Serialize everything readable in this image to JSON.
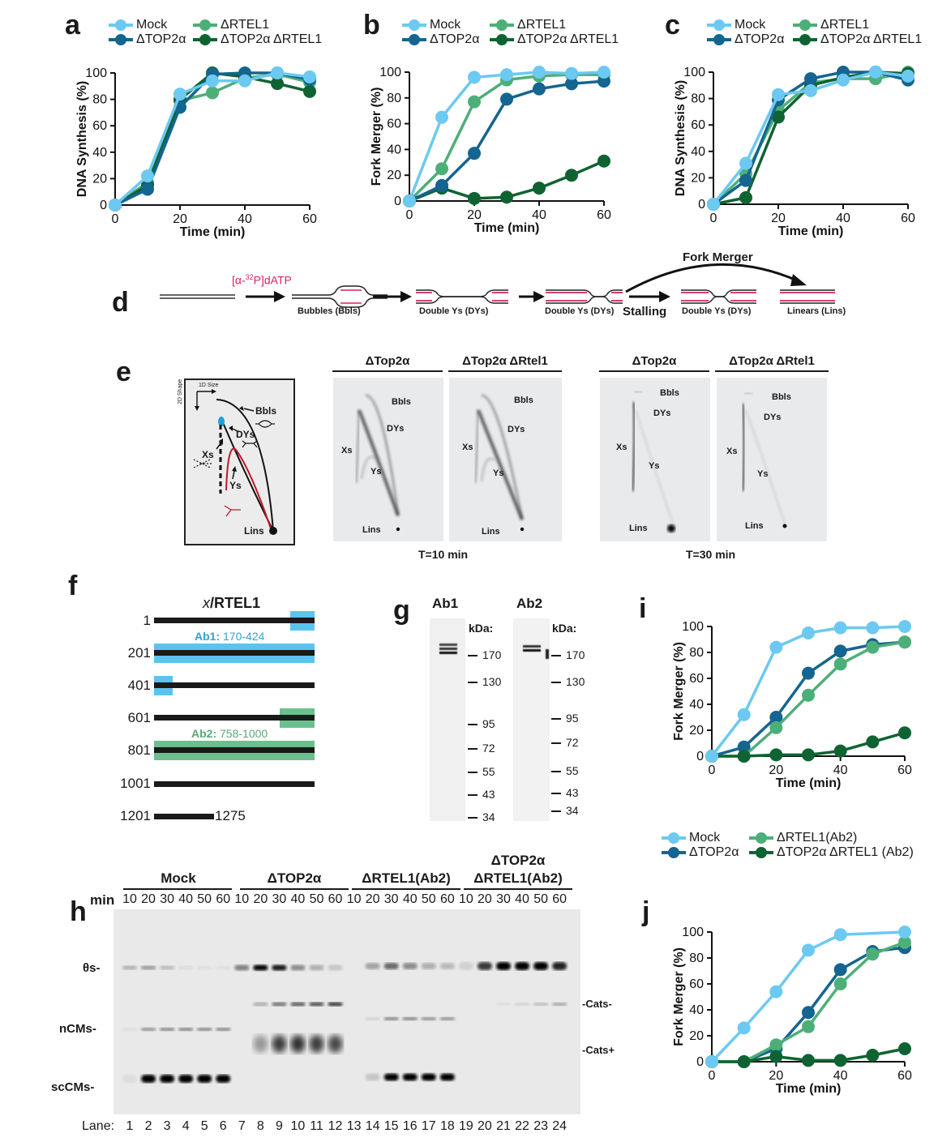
{
  "colors": {
    "mock": "#6cc9f1",
    "top2a": "#14658f",
    "rtel1": "#4daf78",
    "double": "#0f6332",
    "magenta": "#d6245e",
    "blue_band": "#5bc4ee",
    "green_band": "#6cbf8e"
  },
  "panel_letters": {
    "a": "a",
    "b": "b",
    "c": "c",
    "d": "d",
    "e": "e",
    "f": "f",
    "g": "g",
    "h": "h",
    "i": "i",
    "j": "j"
  },
  "chart_data": [
    {
      "id": "a",
      "type": "line",
      "title": "",
      "xlabel": "Time (min)",
      "ylabel": "DNA Synthesis (%)",
      "x": [
        0,
        10,
        20,
        30,
        40,
        50,
        60
      ],
      "xticks": [
        "0",
        "20",
        "40",
        "60"
      ],
      "yticks": [
        "0",
        "20",
        "40",
        "60",
        "80",
        "100"
      ],
      "xlim": [
        0,
        60
      ],
      "ylim": [
        0,
        100
      ],
      "grid": false,
      "legend_position": "top",
      "legend": [
        "Mock",
        "ΔTOP2α",
        "ΔRTEL1",
        "ΔTOP2α ΔRTEL1"
      ],
      "series": [
        {
          "name": "Mock",
          "values": [
            0,
            22,
            84,
            94,
            94,
            100,
            97
          ]
        },
        {
          "name": "ΔTOP2α",
          "values": [
            0,
            12,
            74,
            99,
            100,
            100,
            95
          ]
        },
        {
          "name": "ΔRTEL1",
          "values": [
            0,
            17,
            79,
            85,
            96,
            99,
            93
          ]
        },
        {
          "name": "ΔTOP2α ΔRTEL1",
          "values": [
            0,
            15,
            80,
            100,
            97,
            92,
            86
          ]
        }
      ]
    },
    {
      "id": "b",
      "type": "line",
      "title": "",
      "xlabel": "Time (min)",
      "ylabel": "Fork Merger (%)",
      "x": [
        0,
        10,
        20,
        30,
        40,
        50,
        60
      ],
      "xticks": [
        "0",
        "20",
        "40",
        "60"
      ],
      "yticks": [
        "0",
        "20",
        "40",
        "60",
        "80",
        "100"
      ],
      "xlim": [
        0,
        60
      ],
      "ylim": [
        0,
        100
      ],
      "grid": false,
      "legend_position": "top",
      "legend": [
        "Mock",
        "ΔTOP2α",
        "ΔRTEL1",
        "ΔTOP2α ΔRTEL1"
      ],
      "series": [
        {
          "name": "Mock",
          "values": [
            0,
            65,
            96,
            98,
            100,
            99,
            100
          ]
        },
        {
          "name": "ΔTOP2α",
          "values": [
            0,
            12,
            37,
            79,
            87,
            91,
            93
          ]
        },
        {
          "name": "ΔRTEL1",
          "values": [
            0,
            25,
            77,
            94,
            97,
            98,
            98
          ]
        },
        {
          "name": "ΔTOP2α ΔRTEL1",
          "values": [
            0,
            10,
            2,
            3,
            10,
            20,
            31
          ]
        }
      ]
    },
    {
      "id": "c",
      "type": "line",
      "title": "",
      "xlabel": "Time (min)",
      "ylabel": "DNA Synthesis (%)",
      "x": [
        0,
        10,
        20,
        30,
        40,
        50,
        60
      ],
      "xticks": [
        "0",
        "20",
        "40",
        "60"
      ],
      "yticks": [
        "0",
        "20",
        "40",
        "60",
        "80",
        "100"
      ],
      "xlim": [
        0,
        60
      ],
      "ylim": [
        0,
        100
      ],
      "grid": false,
      "legend_position": "top",
      "legend": [
        "Mock",
        "ΔTOP2α",
        "ΔRTEL1",
        "ΔTOP2α ΔRTEL1"
      ],
      "series": [
        {
          "name": "Mock",
          "values": [
            0,
            31,
            83,
            86,
            94,
            100,
            97
          ]
        },
        {
          "name": "ΔTOP2α",
          "values": [
            0,
            18,
            79,
            95,
            100,
            100,
            94
          ]
        },
        {
          "name": "ΔRTEL1",
          "values": [
            0,
            23,
            71,
            92,
            95,
            95,
            100
          ]
        },
        {
          "name": "ΔTOP2α ΔRTEL1",
          "values": [
            0,
            5,
            66,
            90,
            96,
            100,
            99
          ]
        }
      ]
    },
    {
      "id": "i",
      "type": "line",
      "title": "",
      "xlabel": "Time (min)",
      "ylabel": "Fork Merger (%)",
      "x": [
        0,
        10,
        20,
        30,
        40,
        50,
        60
      ],
      "xticks": [
        "0",
        "20",
        "40",
        "60"
      ],
      "yticks": [
        "0",
        "20",
        "40",
        "60",
        "80",
        "100"
      ],
      "xlim": [
        0,
        60
      ],
      "ylim": [
        0,
        100
      ],
      "grid": false,
      "legend_position": "bottom",
      "legend": [
        "Mock",
        "ΔTOP2α",
        "ΔRTEL1(Ab2)",
        "ΔTOP2α ΔRTEL1 (Ab2)"
      ],
      "series": [
        {
          "name": "Mock",
          "values": [
            0,
            32,
            84,
            95,
            99,
            99,
            100
          ]
        },
        {
          "name": "ΔTOP2α",
          "values": [
            0,
            7,
            30,
            64,
            81,
            86,
            88
          ]
        },
        {
          "name": "ΔRTEL1(Ab2)",
          "values": [
            0,
            0,
            22,
            47,
            71,
            84,
            88
          ]
        },
        {
          "name": "ΔTOP2α ΔRTEL1 (Ab2)",
          "values": [
            0,
            0,
            1,
            1,
            4,
            11,
            18
          ]
        }
      ]
    },
    {
      "id": "j",
      "type": "line",
      "title": "",
      "xlabel": "Time (min)",
      "ylabel": "Fork Merger (%)",
      "x": [
        0,
        10,
        20,
        30,
        40,
        50,
        60
      ],
      "xticks": [
        "0",
        "20",
        "40",
        "60"
      ],
      "yticks": [
        "0",
        "20",
        "40",
        "60",
        "80",
        "100"
      ],
      "xlim": [
        0,
        60
      ],
      "ylim": [
        0,
        100
      ],
      "grid": false,
      "legend_position": "shared-with-i",
      "legend": [
        "Mock",
        "ΔTOP2α",
        "ΔRTEL1(Ab2)",
        "ΔTOP2α ΔRTEL1 (Ab2)"
      ],
      "series": [
        {
          "name": "Mock",
          "values": [
            0,
            26,
            54,
            86,
            98,
            null,
            100
          ]
        },
        {
          "name": "ΔTOP2α",
          "values": [
            0,
            0,
            10,
            38,
            71,
            85,
            88
          ]
        },
        {
          "name": "ΔRTEL1(Ab2)",
          "values": [
            0,
            0,
            13,
            27,
            60,
            83,
            92
          ]
        },
        {
          "name": "ΔTOP2α ΔRTEL1 (Ab2)",
          "values": [
            0,
            0,
            4,
            1,
            1,
            5,
            10
          ]
        }
      ]
    }
  ],
  "panel_d": {
    "label_isotope": "[α-32P]dATP",
    "isotope_prefix": "[α-",
    "isotope_sup": "32",
    "isotope_suffix": "P]dATP",
    "steps": [
      "Bubbles (Bbls)",
      "Double Ys (DYs)",
      "Double Ys (DYs)",
      "Double Ys (DYs)",
      "Linears (Lins)"
    ],
    "stalling": "Stalling",
    "fork_merger": "Fork Merger"
  },
  "panel_e": {
    "schematic": {
      "axis_x": "1D Size",
      "axis_y": "2D Shape",
      "labels": {
        "bbls": "Bbls",
        "dys": "DYs",
        "xs": "Xs",
        "ys": "Ys",
        "lins": "Lins"
      }
    },
    "gels": [
      {
        "title": "ΔTop2α",
        "labels": [
          "Bbls",
          "DYs",
          "Xs",
          "Ys",
          "Lins"
        ]
      },
      {
        "title": "ΔTop2α ΔRtel1",
        "labels": [
          "Bbls",
          "DYs",
          "Xs",
          "Ys",
          "Lins"
        ]
      },
      {
        "title": "ΔTop2α",
        "labels": [
          "Bbls",
          "DYs",
          "Xs",
          "Ys",
          "Lins"
        ]
      },
      {
        "title": "ΔTop2α ΔRtel1",
        "labels": [
          "Bbls",
          "DYs",
          "Xs",
          "Ys",
          "Lins"
        ]
      }
    ],
    "timepoints": [
      "T=10 min",
      "T=30 min"
    ]
  },
  "panel_f": {
    "title_italic": "x",
    "title_rest": "/RTEL1",
    "rows": [
      "1",
      "201",
      "401",
      "601",
      "801",
      "1001",
      "1201"
    ],
    "end_label": "1275",
    "ab1_label": "Ab1:",
    "ab1_range": "170-424",
    "ab2_label": "Ab2:",
    "ab2_range": "758-1000"
  },
  "panel_g": {
    "blots": [
      {
        "title": "Ab1",
        "unit": "kDa:",
        "markers": [
          "170",
          "130",
          "95",
          "72",
          "55",
          "43",
          "34"
        ]
      },
      {
        "title": "Ab2",
        "unit": "kDa:",
        "markers": [
          "170",
          "130",
          "95",
          "72",
          "55",
          "43",
          "34"
        ]
      }
    ]
  },
  "panel_h": {
    "groups": [
      {
        "title": "Mock",
        "title2": ""
      },
      {
        "title": "ΔTOP2α",
        "title2": ""
      },
      {
        "title": "ΔRTEL1(Ab2)",
        "title2": ""
      },
      {
        "title": "ΔTOP2α",
        "title2": "ΔRTEL1(Ab2)"
      }
    ],
    "min_label": "min",
    "minutes": [
      "10",
      "20",
      "30",
      "40",
      "50",
      "60",
      "10",
      "20",
      "30",
      "40",
      "50",
      "60",
      "10",
      "20",
      "30",
      "40",
      "50",
      "60",
      "10",
      "20",
      "30",
      "40",
      "50",
      "60"
    ],
    "lane_label": "Lane:",
    "lanes": [
      "1",
      "2",
      "3",
      "4",
      "5",
      "6",
      "7",
      "8",
      "9",
      "10",
      "11",
      "12",
      "13",
      "14",
      "15",
      "16",
      "17",
      "18",
      "19",
      "20",
      "21",
      "22",
      "23",
      "24"
    ],
    "left_labels": [
      "θs-",
      "nCMs-",
      "scCMs-"
    ],
    "right_labels": [
      "-Cats-",
      "-Cats+"
    ]
  },
  "legend_ij": [
    "Mock",
    "ΔTOP2α",
    "ΔRTEL1(Ab2)",
    "ΔTOP2α ΔRTEL1 (Ab2)"
  ]
}
